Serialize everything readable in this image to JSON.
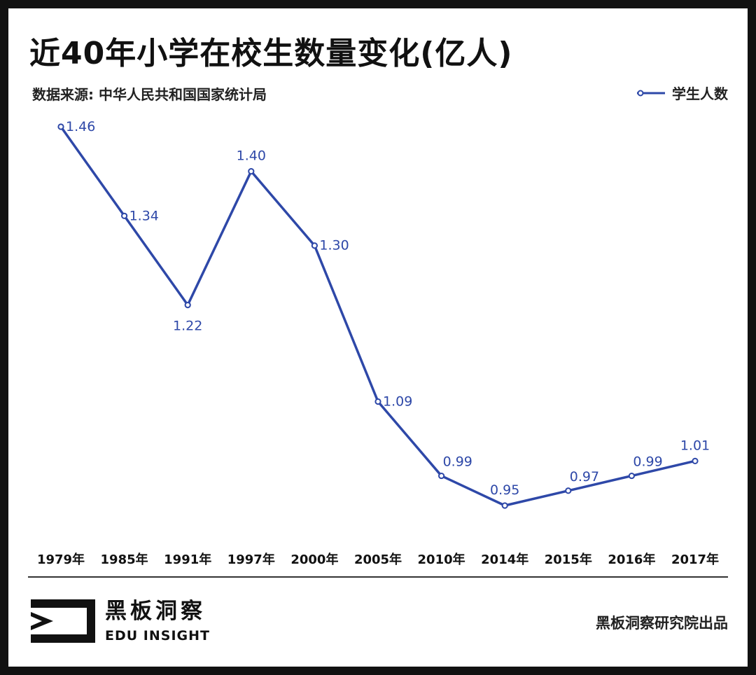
{
  "header": {
    "title": "近40年小学在校生数量变化(亿人)",
    "source": "数据来源: 中华人民共和国国家统计局"
  },
  "footer": {
    "logo_cn": "黑板洞察",
    "logo_en": "EDU INSIGHT",
    "credit": "黑板洞察研究院出品"
  },
  "colors": {
    "series": "#2e48a8",
    "background": "#ffffff",
    "border": "#111111"
  },
  "chart_data": {
    "type": "line",
    "title": "近40年小学在校生数量变化(亿人)",
    "xlabel": "",
    "ylabel": "",
    "categories": [
      "1979年",
      "1985年",
      "1991年",
      "1997年",
      "2000年",
      "2005年",
      "2010年",
      "2014年",
      "2015年",
      "2016年",
      "2017年"
    ],
    "series": [
      {
        "name": "学生人数",
        "values": [
          1.46,
          1.34,
          1.22,
          1.4,
          1.3,
          1.09,
          0.99,
          0.95,
          0.97,
          0.99,
          1.01
        ],
        "labels": [
          "1.46",
          "1.34",
          "1.22",
          "1.40",
          "1.30",
          "1.09",
          "0.99",
          "0.95",
          "0.97",
          "0.99",
          "1.01"
        ]
      }
    ],
    "legend": "top-right",
    "grid": false
  }
}
